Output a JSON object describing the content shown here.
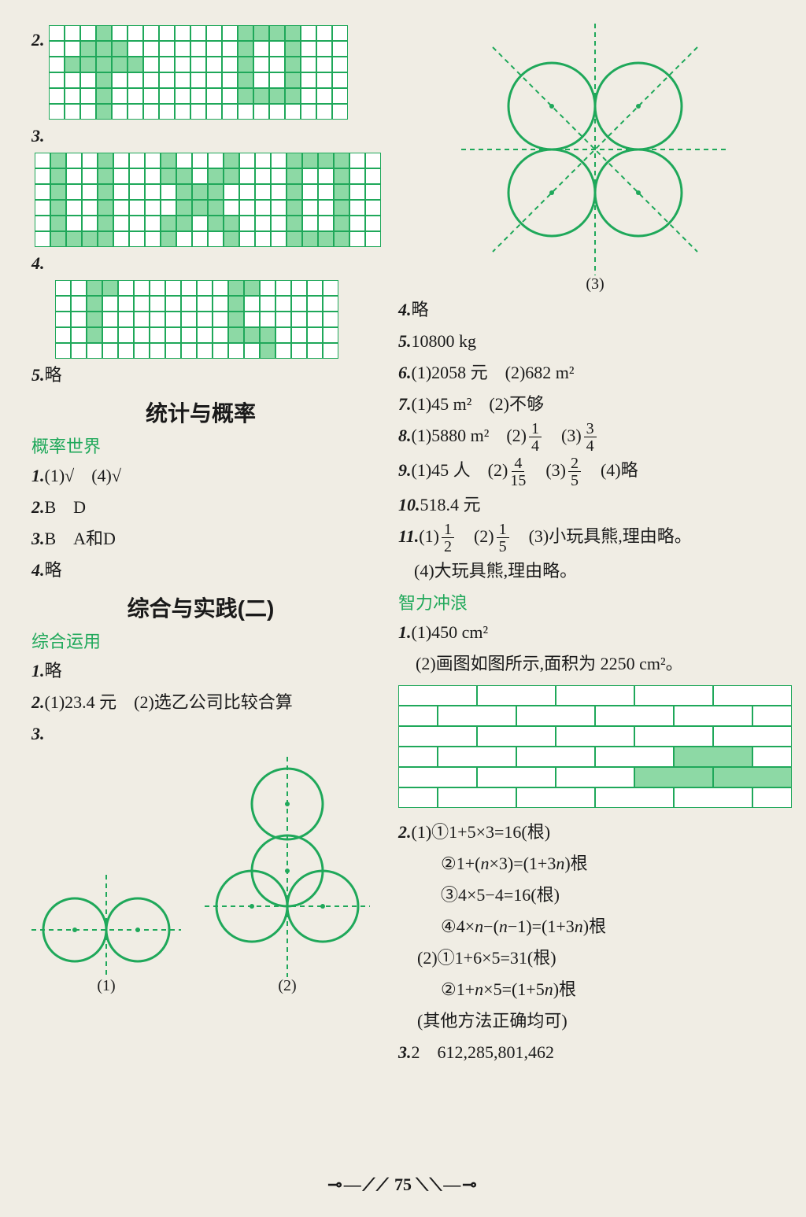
{
  "page_number": "75",
  "colors": {
    "green": "#1fa85a",
    "fill": "#8dd9a5",
    "bg": "#f0ede4",
    "text": "#1a1a1a"
  },
  "left": {
    "q2": "2.",
    "q3": "3.",
    "q4": "4.",
    "q5_num": "5.",
    "q5_text": "略",
    "heading1": "统计与概率",
    "subhead1": "概率世界",
    "l1_num": "1.",
    "l1_text": "(1)√ (4)√",
    "l2_num": "2.",
    "l2_text": "B D",
    "l3_num": "3.",
    "l3_text": "B A和D",
    "l4_num": "4.",
    "l4_text": "略",
    "heading2": "综合与实践(二)",
    "subhead2": "综合运用",
    "c1_num": "1.",
    "c1_text": "略",
    "c2_num": "2.",
    "c2_text": "(1)23.4 元 (2)选乙公司比较合算",
    "c3_num": "3.",
    "fig1_label": "(1)",
    "fig2_label": "(2)"
  },
  "right": {
    "fig3_label": "(3)",
    "r4_num": "4.",
    "r4_text": "略",
    "r5_num": "5.",
    "r5_text": "10800 kg",
    "r6_num": "6.",
    "r6_text": "(1)2058 元 (2)682 m²",
    "r7_num": "7.",
    "r7_text": "(1)45 m² (2)不够",
    "r8_num": "8.",
    "r8_a": "(1)5880 m² (2)",
    "r8_f1n": "1",
    "r8_f1d": "4",
    "r8_b": " (3)",
    "r8_f2n": "3",
    "r8_f2d": "4",
    "r9_num": "9.",
    "r9_a": "(1)45 人 (2)",
    "r9_f1n": "4",
    "r9_f1d": "15",
    "r9_b": " (3)",
    "r9_f2n": "2",
    "r9_f2d": "5",
    "r9_c": " (4)略",
    "r10_num": "10.",
    "r10_text": "518.4 元",
    "r11_num": "11.",
    "r11_a": "(1)",
    "r11_f1n": "1",
    "r11_f1d": "2",
    "r11_b": " (2)",
    "r11_f2n": "1",
    "r11_f2d": "5",
    "r11_c": " (3)小玩具熊,理由略。",
    "r11_d": "(4)大玩具熊,理由略。",
    "subhead3": "智力冲浪",
    "z1_num": "1.",
    "z1_text": "(1)450 cm²",
    "z1_text2": " (2)画图如图所示,面积为 2250 cm²。",
    "z2_num": "2.",
    "z2_l1a": "(1)",
    "z2_l1b": "1+5×3=16(根)",
    "z2_l2a_pre": "1+(",
    "z2_l2a_mid": "n",
    "z2_l2a_post": "×3)=(1+3",
    "z2_l2a_end": ")根",
    "z2_l3": "4×5−4=16(根)",
    "z2_l4a": "4×",
    "z2_l4b": "−(",
    "z2_l4c": "−1)=(1+3",
    "z2_l4d": ")根",
    "z2_l5a": "(2)",
    "z2_l5b": "1+6×5=31(根)",
    "z2_l6a": "1+",
    "z2_l6b": "×5=(1+5",
    "z2_l6c": ")根",
    "z2_l7": "(其他方法正确均可)",
    "z3_num": "3.",
    "z3_text": "2 612,285,801,462",
    "circ1": "①",
    "circ2": "②",
    "circ3": "③",
    "circ4": "④"
  },
  "grids": {
    "g2": {
      "rows": 6,
      "cols": 19,
      "fill": [
        [
          0,
          3
        ],
        [
          0,
          12
        ],
        [
          0,
          13
        ],
        [
          0,
          14
        ],
        [
          0,
          15
        ],
        [
          1,
          2
        ],
        [
          1,
          3
        ],
        [
          1,
          4
        ],
        [
          1,
          12
        ],
        [
          1,
          15
        ],
        [
          2,
          1
        ],
        [
          2,
          2
        ],
        [
          2,
          3
        ],
        [
          2,
          4
        ],
        [
          2,
          5
        ],
        [
          2,
          12
        ],
        [
          2,
          15
        ],
        [
          3,
          3
        ],
        [
          3,
          12
        ],
        [
          3,
          15
        ],
        [
          4,
          3
        ],
        [
          4,
          12
        ],
        [
          4,
          13
        ],
        [
          4,
          14
        ],
        [
          4,
          15
        ],
        [
          5,
          3
        ]
      ]
    },
    "g3": {
      "rows": 6,
      "cols": 22,
      "fill": [
        [
          0,
          1
        ],
        [
          0,
          4
        ],
        [
          0,
          8
        ],
        [
          0,
          12
        ],
        [
          0,
          16
        ],
        [
          0,
          17
        ],
        [
          0,
          18
        ],
        [
          0,
          19
        ],
        [
          1,
          1
        ],
        [
          1,
          4
        ],
        [
          1,
          8
        ],
        [
          1,
          9
        ],
        [
          1,
          11
        ],
        [
          1,
          12
        ],
        [
          1,
          16
        ],
        [
          1,
          19
        ],
        [
          2,
          1
        ],
        [
          2,
          4
        ],
        [
          2,
          9
        ],
        [
          2,
          10
        ],
        [
          2,
          11
        ],
        [
          2,
          16
        ],
        [
          2,
          19
        ],
        [
          3,
          1
        ],
        [
          3,
          4
        ],
        [
          3,
          9
        ],
        [
          3,
          10
        ],
        [
          3,
          11
        ],
        [
          3,
          16
        ],
        [
          3,
          19
        ],
        [
          4,
          1
        ],
        [
          4,
          4
        ],
        [
          4,
          8
        ],
        [
          4,
          9
        ],
        [
          4,
          11
        ],
        [
          4,
          12
        ],
        [
          4,
          16
        ],
        [
          4,
          19
        ],
        [
          5,
          1
        ],
        [
          5,
          2
        ],
        [
          5,
          3
        ],
        [
          5,
          4
        ],
        [
          5,
          8
        ],
        [
          5,
          12
        ],
        [
          5,
          16
        ],
        [
          5,
          17
        ],
        [
          5,
          18
        ],
        [
          5,
          19
        ]
      ]
    },
    "g4": {
      "rows": 5,
      "cols": 18,
      "fill": [
        [
          0,
          2
        ],
        [
          0,
          3
        ],
        [
          0,
          11
        ],
        [
          0,
          12
        ],
        [
          1,
          2
        ],
        [
          1,
          11
        ],
        [
          2,
          2
        ],
        [
          2,
          11
        ],
        [
          3,
          2
        ],
        [
          3,
          11
        ],
        [
          3,
          12
        ],
        [
          3,
          13
        ],
        [
          4,
          13
        ]
      ]
    }
  },
  "bricks": {
    "rows": 6,
    "highlight": [
      [
        3,
        4
      ],
      [
        4,
        3
      ],
      [
        4,
        4
      ]
    ]
  }
}
